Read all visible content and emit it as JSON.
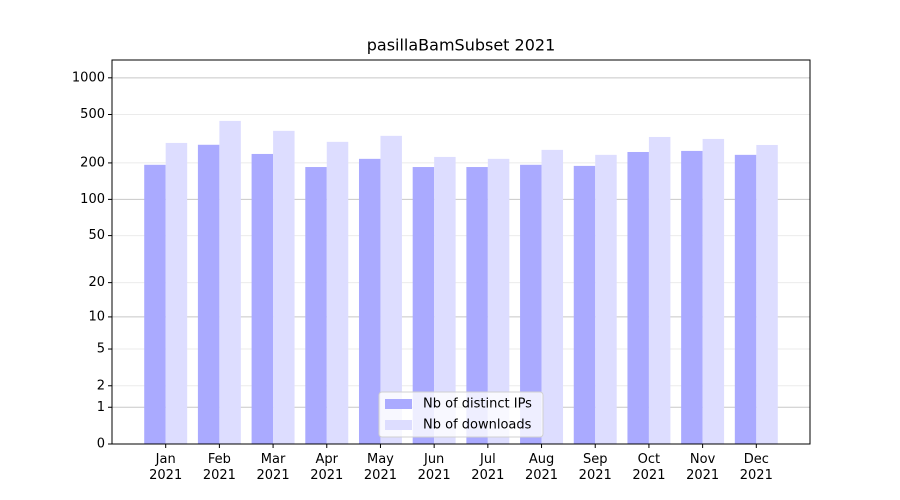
{
  "chart_data": {
    "type": "bar",
    "title": "pasillaBamSubset 2021",
    "categories": [
      "Jan\n2021",
      "Feb\n2021",
      "Mar\n2021",
      "Apr\n2021",
      "May\n2021",
      "Jun\n2021",
      "Jul\n2021",
      "Aug\n2021",
      "Sep\n2021",
      "Oct\n2021",
      "Nov\n2021",
      "Dec\n2021"
    ],
    "series": [
      {
        "name": "Nb of distinct IPs",
        "color": "#aaaaff",
        "values": [
          193,
          282,
          237,
          185,
          216,
          185,
          185,
          193,
          189,
          246,
          251,
          233
        ]
      },
      {
        "name": "Nb of downloads",
        "color": "#ddddff",
        "values": [
          292,
          443,
          367,
          298,
          334,
          224,
          216,
          256,
          233,
          327,
          315,
          281
        ]
      }
    ],
    "yscale": "log1p",
    "ylim": [
      0,
      1400
    ],
    "yticks": [
      0,
      1,
      2,
      5,
      10,
      20,
      50,
      100,
      200,
      500,
      1000
    ],
    "grid": true,
    "legend": "lower center"
  }
}
